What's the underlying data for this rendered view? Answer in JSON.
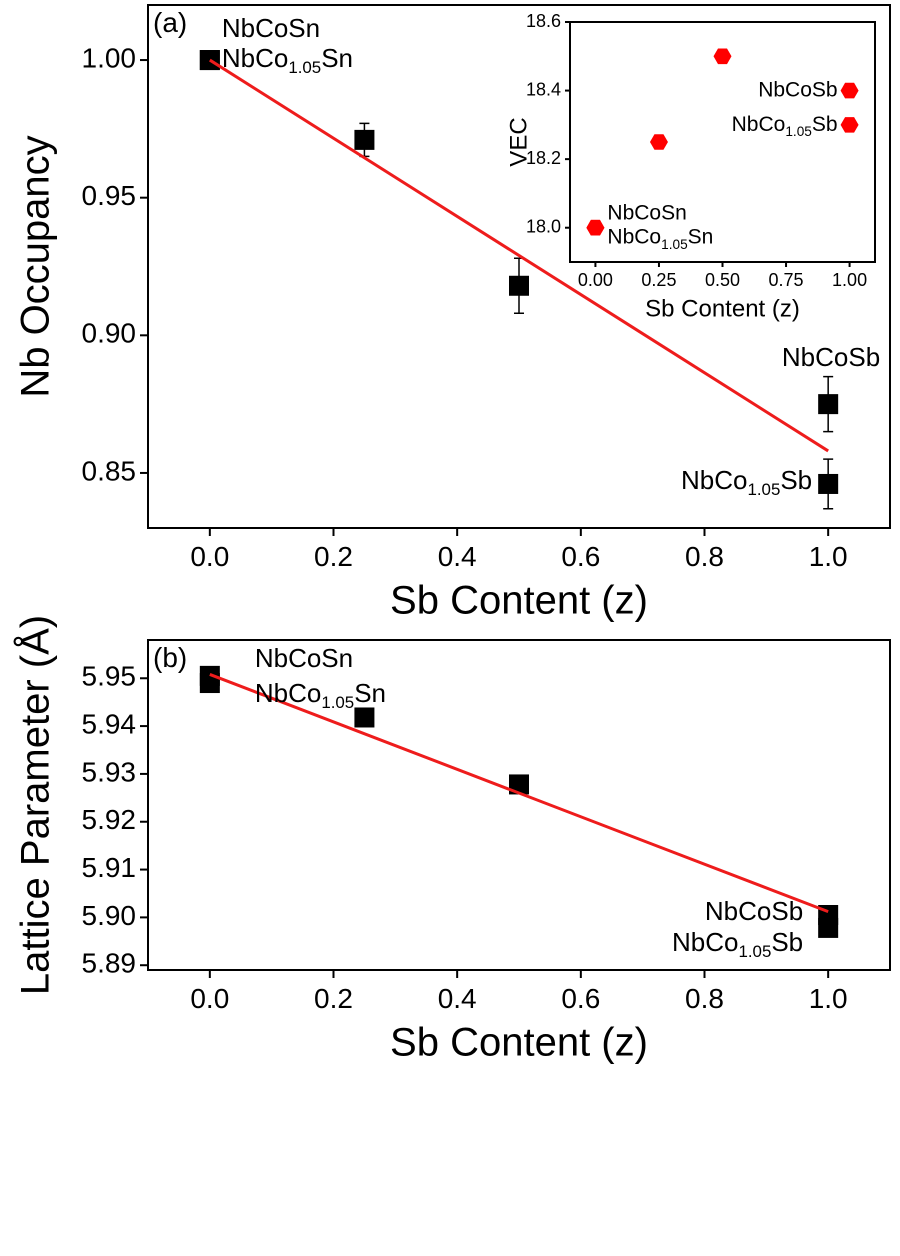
{
  "chart_data": [
    {
      "type": "scatter",
      "panel_label": "(a)",
      "xlabel": "Sb Content (z)",
      "ylabel": "Nb Occupancy",
      "xlim": [
        -0.1,
        1.1
      ],
      "ylim": [
        0.83,
        1.02
      ],
      "xticks": [
        {
          "value": 0,
          "label": "0.0"
        },
        0.2,
        0.4,
        0.6,
        0.8,
        {
          "value": 1,
          "label": "1.0"
        }
      ],
      "yticks": [
        0.85,
        {
          "value": 0.9,
          "label": "0.90"
        },
        0.95,
        {
          "value": 1,
          "label": "1.00"
        }
      ],
      "points": {
        "color": "#000000",
        "x": [
          0,
          0,
          0.25,
          0.5,
          1,
          1
        ],
        "values": [
          1.0,
          1.0,
          0.971,
          0.918,
          0.875,
          0.846
        ],
        "errors": [
          0.001,
          0.001,
          0.006,
          0.01,
          0.01,
          0.009
        ],
        "labels": [
          [
            "NbCoSn"
          ],
          [
            "NbCo",
            "1.05",
            "Sn"
          ],
          null,
          null,
          [
            "NbCoSb"
          ],
          [
            "NbCo",
            "1.05",
            "Sb"
          ]
        ]
      },
      "fit": {
        "color": "#ee1c1c",
        "x": [
          0,
          1
        ],
        "values": [
          1.0,
          0.858
        ]
      }
    },
    {
      "type": "scatter",
      "xlabel": "Sb Content (z)",
      "ylabel": "VEC",
      "xlim": [
        -0.1,
        1.1
      ],
      "ylim": [
        17.9,
        18.6
      ],
      "xticks": [
        {
          "value": 0,
          "label": "0.00"
        },
        0.25,
        {
          "value": 0.5,
          "label": "0.50"
        },
        0.75,
        {
          "value": 1,
          "label": "1.00"
        }
      ],
      "yticks": [
        {
          "value": 18,
          "label": "18.0"
        },
        18.2,
        18.4,
        18.6
      ],
      "points": {
        "color": "#ff0000",
        "marker": "hexagon",
        "x": [
          0,
          0,
          0.25,
          0.5,
          1,
          1
        ],
        "values": [
          18.0,
          18.0,
          18.25,
          18.5,
          18.4,
          18.3
        ],
        "labels": [
          [
            "NbCoSn"
          ],
          [
            "NbCo",
            "1.05",
            "Sn"
          ],
          null,
          null,
          [
            "NbCoSb"
          ],
          [
            "NbCo",
            "1.05",
            "Sb"
          ]
        ]
      }
    },
    {
      "type": "scatter",
      "panel_label": "(b)",
      "xlabel": "Sb Content (z)",
      "ylabel": "Lattice Parameter (Å)",
      "xlim": [
        -0.1,
        1.1
      ],
      "ylim": [
        5.889,
        5.958
      ],
      "xticks": [
        {
          "value": 0,
          "label": "0.0"
        },
        0.2,
        0.4,
        0.6,
        0.8,
        {
          "value": 1,
          "label": "1.0"
        }
      ],
      "yticks": [
        5.89,
        {
          "value": 5.9,
          "label": "5.90"
        },
        5.91,
        5.92,
        5.93,
        5.94,
        5.95
      ],
      "points": {
        "color": "#000000",
        "x": [
          0,
          0,
          0.25,
          0.5,
          1,
          1
        ],
        "values": [
          5.9505,
          5.949,
          5.9418,
          5.9278,
          5.9005,
          5.8978
        ],
        "labels": [
          [
            "NbCoSn"
          ],
          [
            "NbCo",
            "1.05",
            "Sn"
          ],
          null,
          null,
          [
            "NbCoSb"
          ],
          [
            "NbCo",
            "1.05",
            "Sb"
          ]
        ]
      },
      "fit": {
        "color": "#ee1c1c",
        "x": [
          0,
          1
        ],
        "values": [
          5.9508,
          5.9012
        ]
      }
    }
  ]
}
